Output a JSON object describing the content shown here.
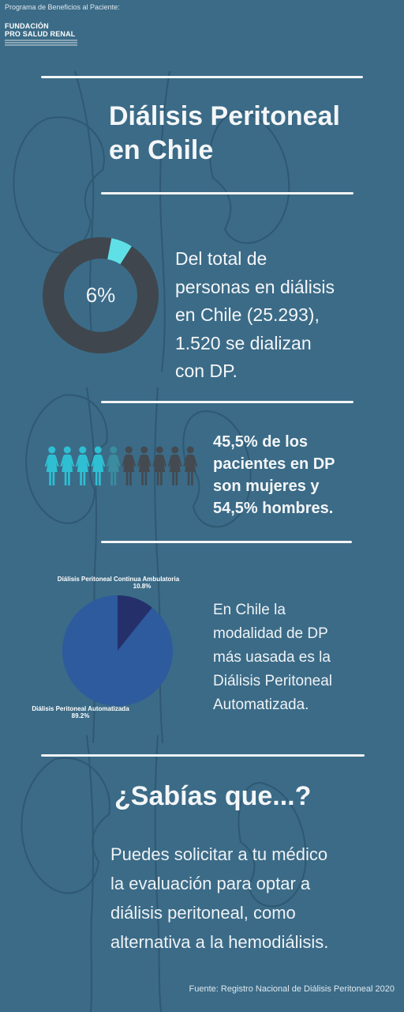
{
  "header": {
    "program_label": "Programa de Beneficios al Paciente:",
    "logo_line1": "FUNDACIÓN",
    "logo_line2": "PRO SALUD RENAL"
  },
  "title": {
    "line1": "Diálisis Peritoneal",
    "line2": "en Chile"
  },
  "section1": {
    "donut_percent_label": "6%",
    "donut_fraction": 0.06,
    "text_line1": "Del total de",
    "text_line2": "personas en diálisis",
    "text_line3": "en Chile (25.293),",
    "text_line4": "1.520 se dializan",
    "text_line5": "con DP."
  },
  "section2": {
    "women_fraction": 0.455,
    "people_icon": "person-dress-icon",
    "text_line1": "45,5% de los",
    "text_line2": "pacientes en DP",
    "text_line3": "son mujeres y",
    "text_line4": "54,5% hombres."
  },
  "section3": {
    "text_line1": "En Chile la",
    "text_line2": "modalidad de DP",
    "text_line3": "más uasada es la",
    "text_line4": "Diálisis Peritoneal",
    "text_line5": "Automatizada."
  },
  "section4": {
    "heading": "¿Sabías que...?",
    "text_line1": "Puedes solicitar a tu médico",
    "text_line2": "la evaluación para optar a",
    "text_line3": "diálisis peritoneal, como",
    "text_line4": "alternativa a la hemodiálisis."
  },
  "footer": {
    "source": "Fuente: Registro Nacional de Diálisis Peritoneal 2020"
  },
  "colors": {
    "background": "#3b6b87",
    "donut_track": "#3f464d",
    "donut_highlight": "#5ee0e6",
    "women": "#2fbfd3",
    "men": "#444a50",
    "pie_main": "#2e5a9e",
    "pie_small": "#25306b"
  },
  "chart_data": [
    {
      "type": "pie",
      "labels": [
        "Diálisis Peritoneal Continua Ambulatoria",
        "Diálisis Peritoneal Automatizada"
      ],
      "values": [
        10.8,
        89.2
      ],
      "value_labels": [
        "10.8%",
        "89.2%"
      ]
    }
  ]
}
